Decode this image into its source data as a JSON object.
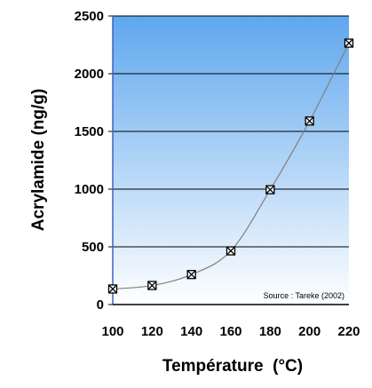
{
  "chart_data": {
    "type": "line",
    "title": "",
    "xlabel": "Température  (°C)",
    "ylabel": "Acrylamide (ng/g)",
    "x": [
      100,
      120,
      140,
      160,
      180,
      200,
      220
    ],
    "series": [
      {
        "values": [
          135,
          165,
          260,
          465,
          995,
          1590,
          2265
        ]
      }
    ],
    "xlim": [
      100,
      220
    ],
    "ylim": [
      0,
      2500
    ],
    "xticks": [
      "100",
      "120",
      "140",
      "160",
      "180",
      "200",
      "220"
    ],
    "yticks": [
      "0",
      "500",
      "1000",
      "1500",
      "2000",
      "2500"
    ],
    "grid": "horizontal",
    "marker": "square-x",
    "line_color": "#808080",
    "background_gradient": [
      "#5fa7ee",
      "#ffffff"
    ],
    "annotation": "Source : Tareke (2002)"
  }
}
